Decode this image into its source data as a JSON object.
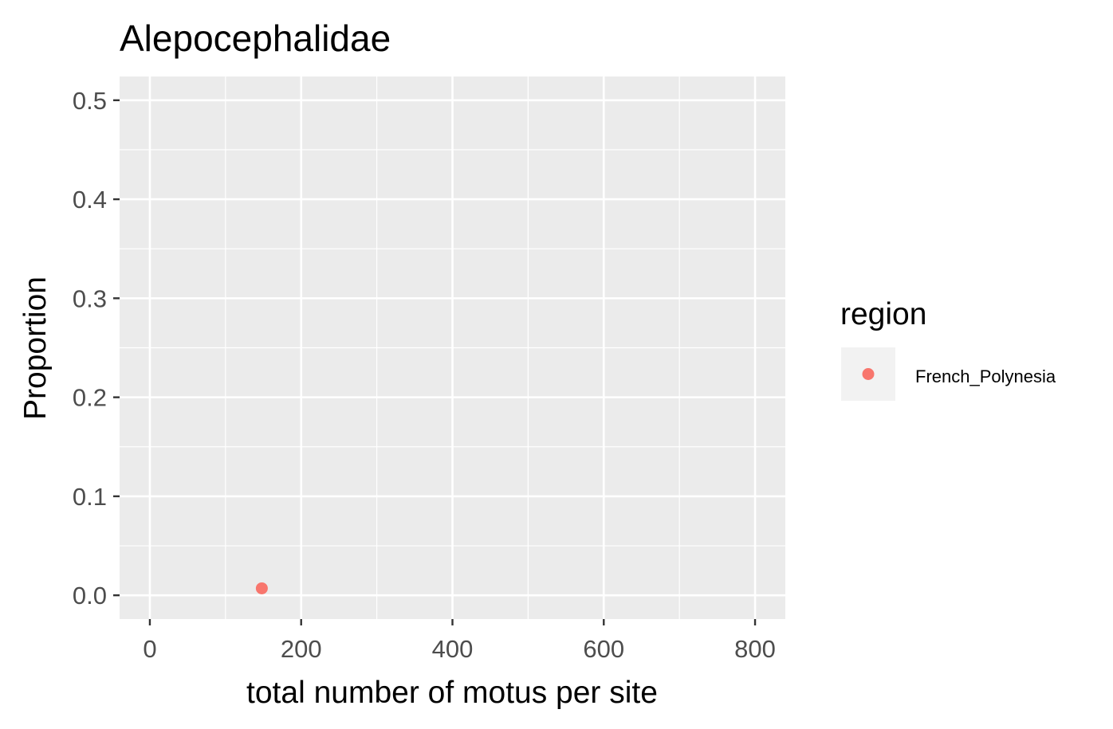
{
  "chart_data": {
    "type": "scatter",
    "title": "Alepocephalidae",
    "xlabel": "total number of motus per site",
    "ylabel": "Proportion",
    "xlim": [
      -40,
      840
    ],
    "ylim": [
      -0.024,
      0.524
    ],
    "x_ticks": [
      0,
      200,
      400,
      600,
      800
    ],
    "x_tick_labels": [
      "0",
      "200",
      "400",
      "600",
      "800"
    ],
    "y_ticks": [
      0.0,
      0.1,
      0.2,
      0.3,
      0.4,
      0.5
    ],
    "y_tick_labels": [
      "0.0",
      "0.1",
      "0.2",
      "0.3",
      "0.4",
      "0.5"
    ],
    "grid": true,
    "panel_background": "#ebebeb",
    "grid_color": "#ffffff",
    "legend": {
      "title": "region",
      "placement": "right",
      "entries": [
        {
          "label": "French_Polynesia",
          "color": "#f8766d"
        }
      ]
    },
    "series": [
      {
        "name": "French_Polynesia",
        "color": "#f8766d",
        "points": [
          {
            "x": 148,
            "y": 0.007
          }
        ]
      }
    ]
  }
}
